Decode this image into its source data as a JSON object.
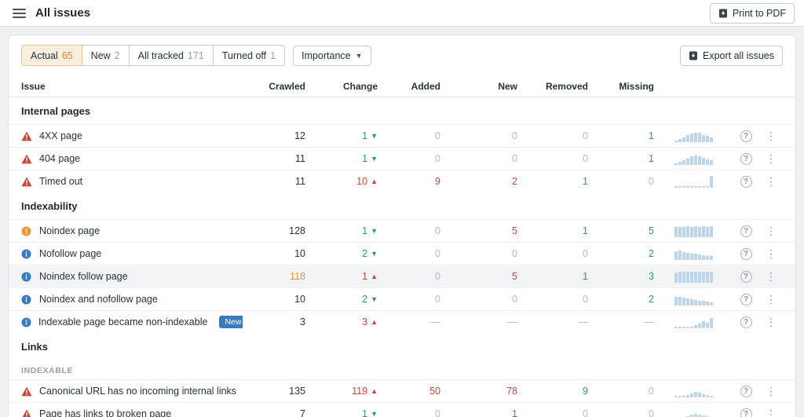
{
  "topbar": {
    "title": "All issues",
    "print_button": "Print to PDF"
  },
  "toolbar": {
    "tabs": [
      {
        "label": "Actual",
        "count": "65",
        "active": true
      },
      {
        "label": "New",
        "count": "2",
        "active": false
      },
      {
        "label": "All tracked",
        "count": "171",
        "active": false
      },
      {
        "label": "Turned off",
        "count": "1",
        "active": false
      }
    ],
    "importance": "Importance",
    "export_button": "Export all issues"
  },
  "colors": {
    "accent_orange": "#e0862e",
    "green": "#2a9d56",
    "red": "#cc4638",
    "error_red": "#cf4437",
    "warning_orange": "#e49c36",
    "notice_blue": "#3a7bbf",
    "badge_blue": "#3a7bbf",
    "spark_blue": "#bdd5ec"
  },
  "table": {
    "headers": [
      "Issue",
      "Crawled",
      "Change",
      "Added",
      "New",
      "Removed",
      "Missing"
    ],
    "sections": [
      {
        "title": "Internal pages",
        "rows": [
          {
            "icon": "error",
            "label": "4XX page",
            "crawled": {
              "v": "12"
            },
            "change": {
              "v": "1",
              "dir": "down",
              "color": "green"
            },
            "added": {
              "v": "0",
              "color": "gray"
            },
            "new": {
              "v": "0",
              "color": "gray"
            },
            "removed": {
              "v": "0",
              "color": "gray"
            },
            "missing": {
              "v": "1",
              "color": "green"
            },
            "spark": [
              15,
              25,
              40,
              55,
              70,
              78,
              72,
              58,
              48,
              38
            ]
          },
          {
            "icon": "error",
            "label": "404 page",
            "crawled": {
              "v": "11"
            },
            "change": {
              "v": "1",
              "dir": "down",
              "color": "green"
            },
            "added": {
              "v": "0",
              "color": "gray"
            },
            "new": {
              "v": "0",
              "color": "gray"
            },
            "removed": {
              "v": "0",
              "color": "gray"
            },
            "missing": {
              "v": "1",
              "color": "green"
            },
            "spark": [
              12,
              22,
              38,
              52,
              68,
              76,
              70,
              56,
              46,
              36
            ]
          },
          {
            "icon": "error",
            "label": "Timed out",
            "crawled": {
              "v": "11"
            },
            "change": {
              "v": "10",
              "dir": "up",
              "color": "red"
            },
            "added": {
              "v": "9",
              "color": "red"
            },
            "new": {
              "v": "2",
              "color": "red"
            },
            "removed": {
              "v": "1",
              "color": "green"
            },
            "missing": {
              "v": "0",
              "color": "gray"
            },
            "spark": [
              2,
              2,
              2,
              2,
              2,
              2,
              2,
              2,
              2,
              88
            ],
            "baseline": true
          }
        ]
      },
      {
        "title": "Indexability",
        "rows": [
          {
            "icon": "warning",
            "label": "Noindex page",
            "crawled": {
              "v": "128"
            },
            "change": {
              "v": "1",
              "dir": "down",
              "color": "green"
            },
            "added": {
              "v": "0",
              "color": "gray"
            },
            "new": {
              "v": "5",
              "color": "red"
            },
            "removed": {
              "v": "1",
              "color": "green"
            },
            "missing": {
              "v": "5",
              "color": "green"
            },
            "spark": [
              80,
              84,
              82,
              85,
              83,
              86,
              84,
              85,
              83,
              86
            ]
          },
          {
            "icon": "notice",
            "label": "Nofollow page",
            "crawled": {
              "v": "10"
            },
            "change": {
              "v": "2",
              "dir": "down",
              "color": "green"
            },
            "added": {
              "v": "0",
              "color": "gray"
            },
            "new": {
              "v": "0",
              "color": "gray"
            },
            "removed": {
              "v": "0",
              "color": "gray"
            },
            "missing": {
              "v": "2",
              "color": "green"
            },
            "spark": [
              68,
              72,
              64,
              58,
              52,
              48,
              42,
              38,
              34,
              30
            ]
          },
          {
            "icon": "notice",
            "label": "Noindex follow page",
            "highlight": true,
            "crawled": {
              "v": "118",
              "color": "orange"
            },
            "change": {
              "v": "1",
              "dir": "up",
              "color": "red"
            },
            "added": {
              "v": "0",
              "color": "gray"
            },
            "new": {
              "v": "5",
              "color": "red"
            },
            "removed": {
              "v": "1",
              "color": "green"
            },
            "missing": {
              "v": "3",
              "color": "green"
            },
            "spark": [
              84,
              88,
              86,
              88,
              85,
              88,
              86,
              88,
              86,
              88
            ]
          },
          {
            "icon": "notice",
            "label": "Noindex and nofollow page",
            "crawled": {
              "v": "10"
            },
            "change": {
              "v": "2",
              "dir": "down",
              "color": "green"
            },
            "added": {
              "v": "0",
              "color": "gray"
            },
            "new": {
              "v": "0",
              "color": "gray"
            },
            "removed": {
              "v": "0",
              "color": "gray"
            },
            "missing": {
              "v": "2",
              "color": "green"
            },
            "spark": [
              66,
              70,
              62,
              56,
              50,
              46,
              40,
              36,
              32,
              28
            ]
          },
          {
            "icon": "notice",
            "label": "Indexable page became non-indexable",
            "badge": "New",
            "crawled": {
              "v": "3"
            },
            "change": {
              "v": "3",
              "dir": "up",
              "color": "red"
            },
            "added": {
              "v": "—",
              "color": "gray"
            },
            "new": {
              "v": "—",
              "color": "gray"
            },
            "removed": {
              "v": "—",
              "color": "gray"
            },
            "missing": {
              "v": "—",
              "color": "gray"
            },
            "spark": [
              2,
              2,
              2,
              2,
              6,
              16,
              30,
              50,
              38,
              72
            ],
            "baseline": true
          }
        ]
      },
      {
        "title": "Links",
        "subheader": "INDEXABLE",
        "rows": [
          {
            "icon": "error",
            "label": "Canonical URL has no incoming internal links",
            "crawled": {
              "v": "135"
            },
            "change": {
              "v": "119",
              "dir": "up",
              "color": "red"
            },
            "added": {
              "v": "50",
              "color": "red"
            },
            "new": {
              "v": "78",
              "color": "red"
            },
            "removed": {
              "v": "9",
              "color": "green"
            },
            "missing": {
              "v": "0",
              "color": "gray"
            },
            "spark": [
              4,
              4,
              6,
              10,
              22,
              38,
              30,
              18,
              10,
              6
            ],
            "baseline": true
          },
          {
            "icon": "error",
            "label": "Page has links to broken page",
            "crawled": {
              "v": "7"
            },
            "change": {
              "v": "1",
              "dir": "down",
              "color": "green"
            },
            "added": {
              "v": "0",
              "color": "gray"
            },
            "new": {
              "v": "1",
              "color": "red"
            },
            "removed": {
              "v": "0",
              "color": "gray"
            },
            "missing": {
              "v": "0",
              "color": "gray"
            },
            "spark": [
              8,
              12,
              18,
              26,
              36,
              46,
              40,
              30,
              22,
              16
            ],
            "baseline": true
          }
        ]
      }
    ]
  }
}
